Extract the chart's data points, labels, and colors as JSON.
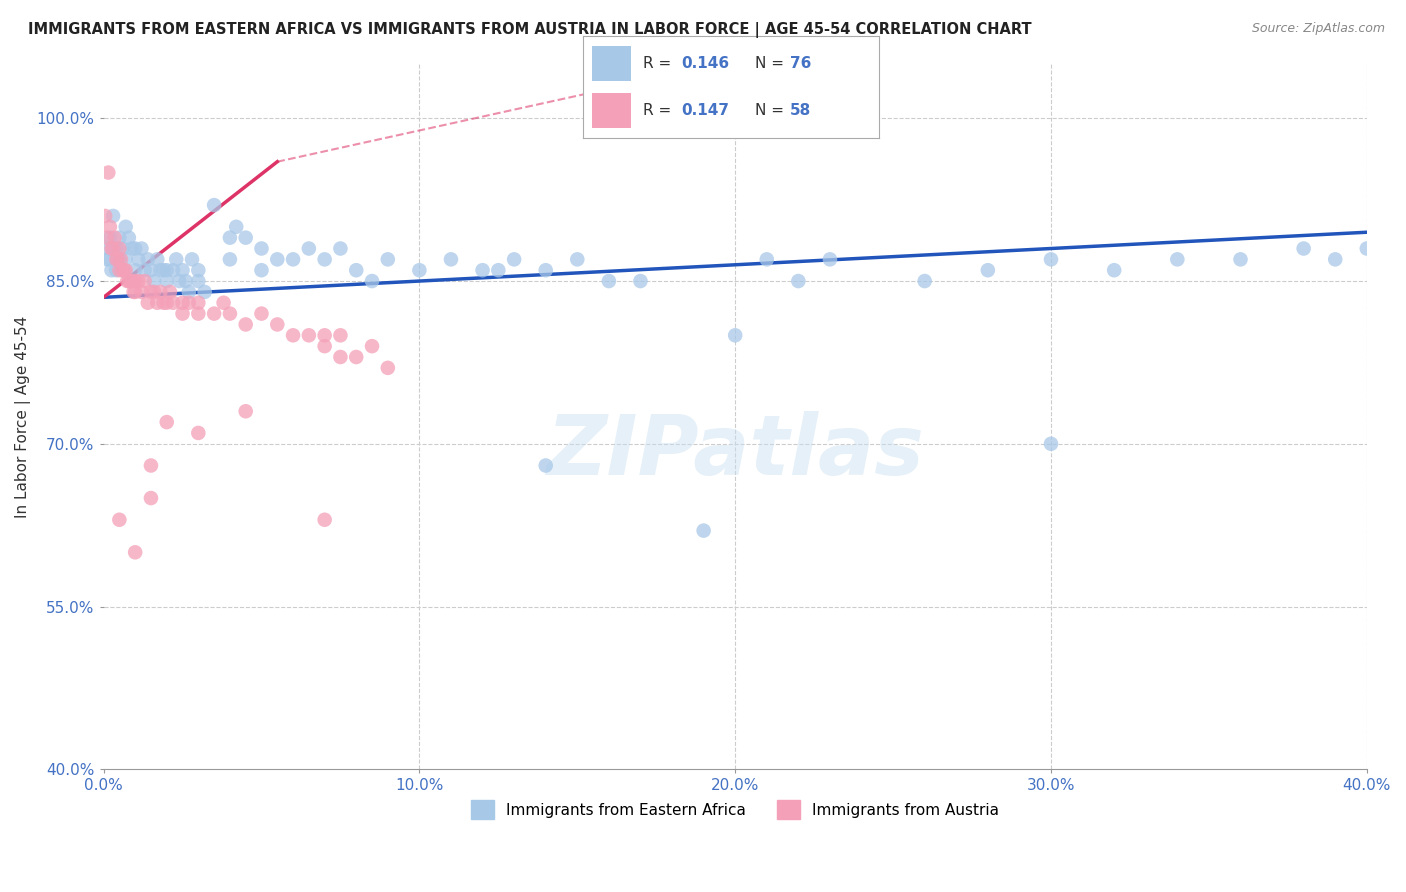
{
  "title": "IMMIGRANTS FROM EASTERN AFRICA VS IMMIGRANTS FROM AUSTRIA IN LABOR FORCE | AGE 45-54 CORRELATION CHART",
  "source": "Source: ZipAtlas.com",
  "xlim": [
    0.0,
    40.0
  ],
  "ylim": [
    40.0,
    105.0
  ],
  "ylabel": "In Labor Force | Age 45-54",
  "blue_scatter_color": "#a8c8e8",
  "pink_scatter_color": "#f4a0b8",
  "blue_line_color": "#2255bb",
  "pink_line_color": "#dd3366",
  "watermark": "ZIPatlas",
  "background_color": "#ffffff",
  "grid_color": "#cccccc",
  "blue_R": "0.146",
  "blue_N": "76",
  "pink_R": "0.147",
  "pink_N": "58",
  "accent_color": "#4472c4",
  "blue_trend_x0": 0.0,
  "blue_trend_y0": 83.5,
  "blue_trend_x1": 40.0,
  "blue_trend_y1": 89.5,
  "pink_solid_x0": 0.0,
  "pink_solid_y0": 83.5,
  "pink_solid_x1": 5.5,
  "pink_solid_y1": 96.0,
  "pink_dash_x0": 5.5,
  "pink_dash_y0": 96.0,
  "pink_dash_x1": 18.0,
  "pink_dash_y1": 104.0
}
